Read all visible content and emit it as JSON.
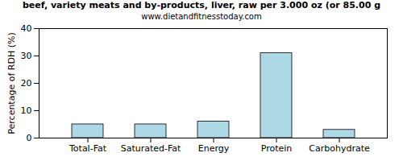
{
  "chart_data": {
    "type": "bar",
    "title": "beef, variety meats and by-products, liver, raw per 3.000 oz (or 85.00 g",
    "subtitle": "www.dietandfitnesstoday.com",
    "y_label": "Percentage of RDH (%)",
    "categories": [
      "Total-Fat",
      "Saturated-Fat",
      "Energy",
      "Protein",
      "Carbohydrate"
    ],
    "values": [
      5,
      5,
      6,
      31,
      3
    ],
    "color": "#add8e6",
    "ylim": [
      0,
      40
    ],
    "yticks": [
      0,
      10,
      20,
      30,
      40
    ],
    "grid": false
  }
}
